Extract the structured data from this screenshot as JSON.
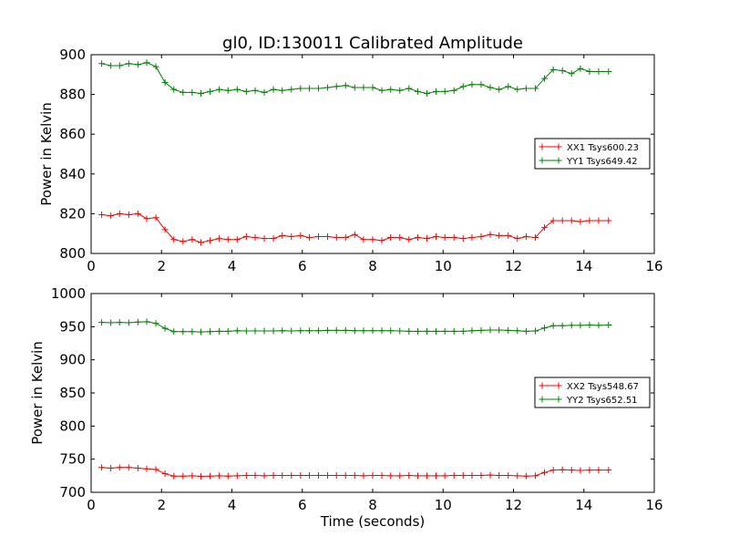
{
  "chart_data": [
    {
      "type": "line",
      "title": "gl0, ID:130011 Calibrated Amplitude",
      "xlabel": "",
      "ylabel": "Power in Kelvin",
      "xlim": [
        0,
        16
      ],
      "ylim": [
        800,
        900
      ],
      "xticks": [
        "0",
        "2",
        "4",
        "6",
        "8",
        "10",
        "12",
        "14",
        "16"
      ],
      "yticks": [
        "800",
        "820",
        "840",
        "860",
        "880",
        "900"
      ],
      "legend_placement": "center-right",
      "x": [
        0.3,
        0.56,
        0.81,
        1.07,
        1.33,
        1.58,
        1.84,
        2.1,
        2.35,
        2.61,
        2.87,
        3.12,
        3.38,
        3.64,
        3.89,
        4.15,
        4.41,
        4.66,
        4.92,
        5.18,
        5.43,
        5.69,
        5.95,
        6.2,
        6.46,
        6.72,
        6.97,
        7.23,
        7.49,
        7.74,
        8.0,
        8.26,
        8.51,
        8.77,
        9.03,
        9.28,
        9.54,
        9.8,
        10.05,
        10.31,
        10.57,
        10.82,
        11.08,
        11.34,
        11.59,
        11.85,
        12.11,
        12.36,
        12.62,
        12.88,
        13.13,
        13.39,
        13.65,
        13.9,
        14.16,
        14.42,
        14.7
      ],
      "series": [
        {
          "name": "XX1 Tsys600.23",
          "color": "#ff0000",
          "values": [
            819.5,
            819.0,
            820.0,
            819.5,
            820.0,
            817.5,
            818.0,
            812.0,
            807.0,
            806.0,
            807.0,
            805.5,
            806.5,
            807.5,
            807.0,
            807.0,
            808.5,
            808.0,
            807.5,
            807.5,
            809.0,
            808.5,
            809.0,
            808.0,
            808.5,
            808.5,
            808.0,
            808.0,
            809.5,
            807.0,
            807.0,
            806.5,
            808.0,
            808.0,
            807.0,
            808.0,
            807.5,
            808.5,
            808.0,
            808.0,
            807.5,
            808.0,
            808.5,
            809.5,
            809.0,
            809.0,
            807.5,
            808.5,
            808.0,
            813.0,
            816.5,
            816.5,
            816.5,
            816.0,
            816.5,
            816.5,
            816.5
          ]
        },
        {
          "name": "YY1 Tsys649.42",
          "color": "#008000",
          "values": [
            895.5,
            894.5,
            894.5,
            895.5,
            895.0,
            896.0,
            894.0,
            886.0,
            882.5,
            881.0,
            881.0,
            880.5,
            881.5,
            882.5,
            882.0,
            882.5,
            881.5,
            882.0,
            881.0,
            882.5,
            882.0,
            882.5,
            883.0,
            883.0,
            883.0,
            883.5,
            884.0,
            884.5,
            883.5,
            883.5,
            883.5,
            882.0,
            882.5,
            882.0,
            883.0,
            881.5,
            880.5,
            881.5,
            881.5,
            882.0,
            884.0,
            885.0,
            885.0,
            883.5,
            882.5,
            884.0,
            882.5,
            883.0,
            883.0,
            888.0,
            892.5,
            892.0,
            890.5,
            893.0,
            891.5,
            891.5,
            891.5
          ]
        }
      ]
    },
    {
      "type": "line",
      "title": "",
      "xlabel": "Time (seconds)",
      "ylabel": "Power in Kelvin",
      "xlim": [
        0,
        16
      ],
      "ylim": [
        700,
        1000
      ],
      "xticks": [
        "0",
        "2",
        "4",
        "6",
        "8",
        "10",
        "12",
        "14",
        "16"
      ],
      "yticks": [
        "700",
        "750",
        "800",
        "850",
        "900",
        "950",
        "1000"
      ],
      "legend_placement": "center-right",
      "x": [
        0.3,
        0.56,
        0.81,
        1.07,
        1.33,
        1.58,
        1.84,
        2.1,
        2.35,
        2.61,
        2.87,
        3.12,
        3.38,
        3.64,
        3.89,
        4.15,
        4.41,
        4.66,
        4.92,
        5.18,
        5.43,
        5.69,
        5.95,
        6.2,
        6.46,
        6.72,
        6.97,
        7.23,
        7.49,
        7.74,
        8.0,
        8.26,
        8.51,
        8.77,
        9.03,
        9.28,
        9.54,
        9.8,
        10.05,
        10.31,
        10.57,
        10.82,
        11.08,
        11.34,
        11.59,
        11.85,
        12.11,
        12.36,
        12.62,
        12.88,
        13.13,
        13.39,
        13.65,
        13.9,
        14.16,
        14.42,
        14.7
      ],
      "series": [
        {
          "name": "XX2 Tsys548.67",
          "color": "#ff0000",
          "values": [
            737.5,
            736.5,
            737.5,
            737.5,
            736.5,
            735.5,
            734.5,
            728.0,
            724.5,
            724.5,
            725.0,
            724.0,
            724.5,
            725.0,
            724.5,
            725.0,
            725.5,
            725.5,
            725.0,
            725.5,
            725.5,
            725.5,
            725.5,
            725.5,
            725.5,
            725.5,
            725.5,
            725.5,
            725.5,
            725.0,
            725.5,
            725.5,
            725.0,
            725.0,
            725.5,
            725.0,
            725.0,
            725.0,
            725.0,
            725.5,
            725.5,
            725.5,
            725.5,
            726.0,
            725.5,
            725.5,
            725.0,
            724.5,
            725.0,
            730.0,
            733.5,
            734.0,
            733.5,
            733.0,
            733.5,
            733.5,
            733.5
          ]
        },
        {
          "name": "YY2 Tsys652.51",
          "color": "#008000",
          "values": [
            956.5,
            956.0,
            956.5,
            956.0,
            957.0,
            957.5,
            955.0,
            947.5,
            942.5,
            942.5,
            942.5,
            942.0,
            942.5,
            943.0,
            943.0,
            944.0,
            943.5,
            943.5,
            943.5,
            943.5,
            944.0,
            943.5,
            944.0,
            944.0,
            944.0,
            944.5,
            944.5,
            944.5,
            944.0,
            944.0,
            944.0,
            944.0,
            944.0,
            943.5,
            943.0,
            943.0,
            943.0,
            943.0,
            943.0,
            943.0,
            943.0,
            944.0,
            944.5,
            945.0,
            945.0,
            944.5,
            944.0,
            943.0,
            943.5,
            948.0,
            951.5,
            951.5,
            952.0,
            952.0,
            952.5,
            952.0,
            952.5
          ]
        }
      ]
    }
  ]
}
